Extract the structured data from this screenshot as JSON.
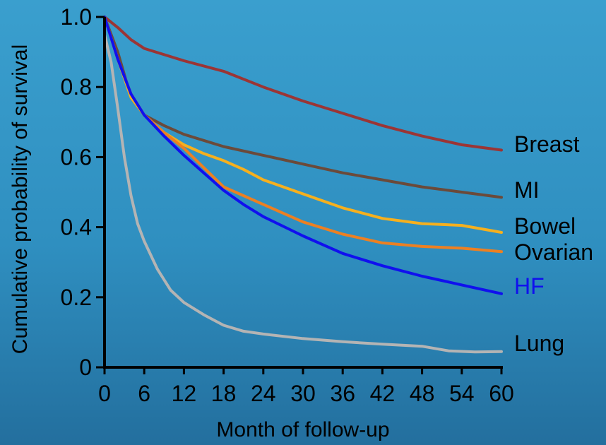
{
  "chart_data": {
    "type": "line",
    "title": "",
    "xlabel": "Month of follow-up",
    "ylabel": "Cumulative probability of survival",
    "xlim": [
      0,
      60
    ],
    "ylim": [
      0,
      1.0
    ],
    "xticks": [
      0,
      6,
      12,
      18,
      24,
      30,
      36,
      42,
      48,
      54,
      60
    ],
    "xtick_labels": [
      "0",
      "6",
      "12",
      "18",
      "24",
      "30",
      "36",
      "42",
      "48",
      "54",
      "60"
    ],
    "yticks": [
      0,
      0.2,
      0.4,
      0.6,
      0.8,
      1.0
    ],
    "ytick_labels": [
      "0",
      "0.2",
      "0.4",
      "0.6",
      "0.8",
      "1.0"
    ],
    "grid": false,
    "legend": "inline-right",
    "series": [
      {
        "name": "Breast",
        "color": "#9b3535",
        "points": [
          [
            0,
            1.0
          ],
          [
            2,
            0.97
          ],
          [
            4,
            0.935
          ],
          [
            6,
            0.91
          ],
          [
            12,
            0.875
          ],
          [
            18,
            0.845
          ],
          [
            24,
            0.8
          ],
          [
            30,
            0.76
          ],
          [
            36,
            0.725
          ],
          [
            42,
            0.69
          ],
          [
            48,
            0.66
          ],
          [
            54,
            0.635
          ],
          [
            60,
            0.62
          ]
        ]
      },
      {
        "name": "MI",
        "color": "#6b4a3a",
        "points": [
          [
            0,
            1.0
          ],
          [
            2,
            0.9
          ],
          [
            4,
            0.77
          ],
          [
            6,
            0.72
          ],
          [
            9,
            0.69
          ],
          [
            12,
            0.665
          ],
          [
            18,
            0.63
          ],
          [
            24,
            0.605
          ],
          [
            30,
            0.58
          ],
          [
            36,
            0.555
          ],
          [
            42,
            0.535
          ],
          [
            48,
            0.515
          ],
          [
            54,
            0.5
          ],
          [
            60,
            0.485
          ]
        ]
      },
      {
        "name": "Bowel",
        "color": "#f6b01e",
        "points": [
          [
            0,
            1.0
          ],
          [
            2,
            0.88
          ],
          [
            4,
            0.77
          ],
          [
            6,
            0.72
          ],
          [
            9,
            0.67
          ],
          [
            12,
            0.635
          ],
          [
            15,
            0.61
          ],
          [
            18,
            0.59
          ],
          [
            21,
            0.565
          ],
          [
            24,
            0.535
          ],
          [
            30,
            0.495
          ],
          [
            36,
            0.455
          ],
          [
            42,
            0.425
          ],
          [
            48,
            0.41
          ],
          [
            54,
            0.405
          ],
          [
            60,
            0.385
          ]
        ]
      },
      {
        "name": "Ovarian",
        "color": "#ec8022",
        "points": [
          [
            0,
            1.0
          ],
          [
            2,
            0.88
          ],
          [
            4,
            0.78
          ],
          [
            6,
            0.72
          ],
          [
            9,
            0.67
          ],
          [
            12,
            0.625
          ],
          [
            15,
            0.57
          ],
          [
            18,
            0.515
          ],
          [
            21,
            0.49
          ],
          [
            24,
            0.465
          ],
          [
            30,
            0.415
          ],
          [
            36,
            0.38
          ],
          [
            42,
            0.355
          ],
          [
            48,
            0.345
          ],
          [
            54,
            0.34
          ],
          [
            60,
            0.33
          ]
        ]
      },
      {
        "name": "HF",
        "color": "#1010ee",
        "points": [
          [
            0,
            1.0
          ],
          [
            2,
            0.88
          ],
          [
            4,
            0.78
          ],
          [
            6,
            0.72
          ],
          [
            9,
            0.66
          ],
          [
            12,
            0.605
          ],
          [
            15,
            0.555
          ],
          [
            18,
            0.505
          ],
          [
            21,
            0.465
          ],
          [
            24,
            0.43
          ],
          [
            30,
            0.375
          ],
          [
            36,
            0.325
          ],
          [
            42,
            0.29
          ],
          [
            48,
            0.26
          ],
          [
            54,
            0.235
          ],
          [
            60,
            0.21
          ]
        ]
      },
      {
        "name": "Lung",
        "color": "#b4b4b4",
        "points": [
          [
            0,
            0.95
          ],
          [
            1,
            0.87
          ],
          [
            2,
            0.74
          ],
          [
            3,
            0.6
          ],
          [
            4,
            0.49
          ],
          [
            5,
            0.41
          ],
          [
            6,
            0.36
          ],
          [
            8,
            0.28
          ],
          [
            10,
            0.22
          ],
          [
            12,
            0.185
          ],
          [
            15,
            0.15
          ],
          [
            18,
            0.12
          ],
          [
            21,
            0.103
          ],
          [
            24,
            0.095
          ],
          [
            30,
            0.082
          ],
          [
            36,
            0.073
          ],
          [
            42,
            0.066
          ],
          [
            48,
            0.06
          ],
          [
            52,
            0.047
          ],
          [
            56,
            0.044
          ],
          [
            60,
            0.045
          ]
        ]
      }
    ]
  }
}
